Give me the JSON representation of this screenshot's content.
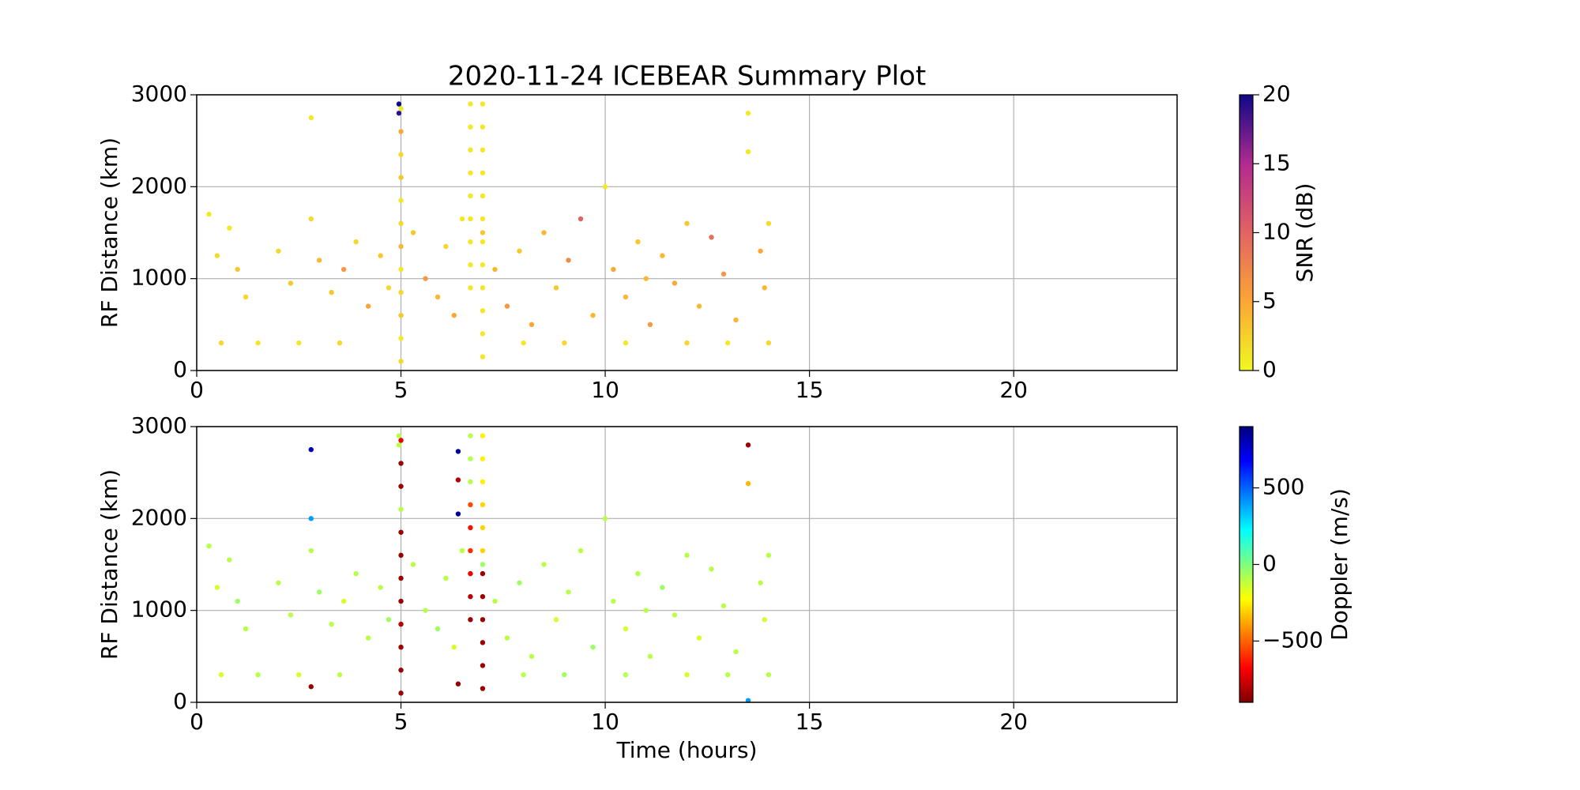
{
  "chart_data": [
    {
      "type": "scatter",
      "title": "2020-11-24 ICEBEAR Summary Plot",
      "ylabel": "RF Distance (km)",
      "xlim": [
        0,
        24
      ],
      "ylim": [
        0,
        3000
      ],
      "xticks": [
        0,
        5,
        10,
        15,
        20
      ],
      "yticks": [
        0,
        1000,
        2000,
        3000
      ],
      "grid": true,
      "x": [
        0.3,
        0.5,
        0.8,
        1.0,
        1.2,
        1.5,
        0.6,
        2.0,
        2.3,
        2.8,
        2.8,
        3.0,
        3.3,
        3.6,
        3.9,
        4.2,
        4.5,
        4.7,
        3.5,
        2.5,
        5.3,
        5.6,
        5.9,
        6.1,
        6.3,
        6.5,
        7.3,
        7.6,
        7.9,
        8.2,
        8.5,
        8.8,
        9.1,
        9.4,
        9.7,
        10.0,
        10.2,
        10.5,
        10.8,
        11.1,
        11.4,
        11.7,
        12.0,
        12.3,
        12.6,
        12.9,
        13.2,
        13.5,
        13.5,
        13.8,
        13.9,
        14.0,
        8.0,
        9.0,
        10.5,
        12.0,
        13.0,
        14.0,
        11.0,
        7.0,
        4.95,
        4.95,
        5.0,
        5.0,
        5.0,
        5.0,
        5.0,
        5.0,
        5.0,
        5.0,
        5.0,
        5.0,
        5.0,
        5.0,
        6.7,
        6.7,
        6.7,
        6.7,
        6.7,
        6.7,
        6.7,
        6.7,
        6.7,
        7.0,
        7.0,
        7.0,
        7.0,
        7.0,
        7.0,
        7.0,
        7.0,
        7.0,
        7.0,
        7.0,
        7.0
      ],
      "y": [
        1700,
        1250,
        1550,
        1100,
        800,
        300,
        300,
        1300,
        950,
        2750,
        1650,
        1200,
        850,
        1100,
        1400,
        700,
        1250,
        900,
        300,
        300,
        1500,
        1000,
        800,
        1350,
        600,
        1650,
        1100,
        700,
        1300,
        500,
        1500,
        900,
        1200,
        1650,
        600,
        2000,
        1100,
        800,
        1400,
        500,
        1250,
        950,
        1600,
        700,
        1450,
        1050,
        550,
        2800,
        2380,
        1300,
        900,
        1600,
        300,
        300,
        300,
        300,
        300,
        300,
        1000,
        1500,
        2800,
        2900,
        100,
        350,
        600,
        850,
        1100,
        1350,
        1600,
        1850,
        2100,
        2350,
        2600,
        2850,
        900,
        1150,
        1400,
        1650,
        1900,
        2150,
        2400,
        2650,
        2900,
        150,
        400,
        650,
        900,
        1150,
        1400,
        1650,
        1900,
        2150,
        2400,
        2650,
        2900
      ],
      "c": [
        1,
        2,
        1,
        3,
        2,
        1,
        2,
        2,
        3,
        1,
        2,
        4,
        3,
        6,
        2,
        5,
        3,
        2,
        2,
        1,
        3,
        6,
        4,
        2,
        5,
        1,
        4,
        6,
        3,
        5,
        4,
        3,
        7,
        10,
        4,
        1,
        5,
        4,
        3,
        6,
        4,
        5,
        3,
        4,
        9,
        6,
        4,
        1,
        1,
        5,
        4,
        2,
        1,
        2,
        1,
        2,
        1,
        2,
        4,
        3,
        19,
        20,
        2,
        1,
        3,
        2,
        1,
        4,
        2,
        1,
        3,
        2,
        5,
        1,
        1,
        1,
        1,
        1,
        1,
        1,
        1,
        1,
        1,
        1,
        1,
        1,
        1,
        1,
        1,
        1,
        1,
        1,
        1,
        1,
        1
      ],
      "colorbar": {
        "label": "SNR (dB)",
        "lim": [
          0,
          20
        ],
        "ticks": [
          0,
          5,
          10,
          15,
          20
        ],
        "colormap": [
          [
            0,
            "#f0f921"
          ],
          [
            0.25,
            "#fca636"
          ],
          [
            0.5,
            "#e16462"
          ],
          [
            0.75,
            "#b12a90"
          ],
          [
            1,
            "#0d0887"
          ]
        ]
      }
    },
    {
      "type": "scatter",
      "xlabel": "Time (hours)",
      "ylabel": "RF Distance (km)",
      "xlim": [
        0,
        24
      ],
      "ylim": [
        0,
        3000
      ],
      "xticks": [
        0,
        5,
        10,
        15,
        20
      ],
      "yticks": [
        0,
        1000,
        2000,
        3000
      ],
      "grid": true,
      "x": [
        0.3,
        0.5,
        0.8,
        1.0,
        1.2,
        1.5,
        0.6,
        2.0,
        2.3,
        2.8,
        2.8,
        3.0,
        3.3,
        3.6,
        3.9,
        4.2,
        4.5,
        4.7,
        3.5,
        2.5,
        5.3,
        5.6,
        5.9,
        6.1,
        6.3,
        6.5,
        7.3,
        7.6,
        7.9,
        8.2,
        8.5,
        8.8,
        9.1,
        9.4,
        9.7,
        10.0,
        10.2,
        10.5,
        10.8,
        11.1,
        11.4,
        11.7,
        12.0,
        12.3,
        12.6,
        12.9,
        13.2,
        13.5,
        13.5,
        13.8,
        13.9,
        14.0,
        8.0,
        9.0,
        10.5,
        12.0,
        13.0,
        14.0,
        11.0,
        7.0,
        2.8,
        2.8,
        6.4,
        6.4,
        6.4,
        6.4,
        13.5,
        4.95,
        4.95,
        5.0,
        5.0,
        5.0,
        5.0,
        5.0,
        5.0,
        5.0,
        5.0,
        5.0,
        5.0,
        5.0,
        5.0,
        6.7,
        6.7,
        6.7,
        6.7,
        6.7,
        6.7,
        6.7,
        6.7,
        6.7,
        7.0,
        7.0,
        7.0,
        7.0,
        7.0,
        7.0,
        7.0,
        7.0,
        7.0,
        7.0,
        7.0,
        7.0
      ],
      "y": [
        1700,
        1250,
        1550,
        1100,
        800,
        300,
        300,
        1300,
        950,
        2750,
        1650,
        1200,
        850,
        1100,
        1400,
        700,
        1250,
        900,
        300,
        300,
        1500,
        1000,
        800,
        1350,
        600,
        1650,
        1100,
        700,
        1300,
        500,
        1500,
        900,
        1200,
        1650,
        600,
        2000,
        1100,
        800,
        1400,
        500,
        1250,
        950,
        1600,
        700,
        1450,
        1050,
        550,
        2800,
        2380,
        1300,
        900,
        1600,
        300,
        300,
        300,
        300,
        300,
        300,
        1000,
        1500,
        2000,
        170,
        2730,
        2420,
        2050,
        200,
        20,
        2800,
        2900,
        100,
        350,
        600,
        850,
        1100,
        1350,
        1600,
        1850,
        2100,
        2350,
        2600,
        2850,
        900,
        1150,
        1400,
        1650,
        1900,
        2150,
        2400,
        2650,
        2900,
        150,
        400,
        650,
        900,
        1150,
        1400,
        1650,
        1900,
        2150,
        2400,
        2650,
        2900
      ],
      "c": [
        -100,
        -150,
        -100,
        -50,
        -100,
        -100,
        -150,
        -100,
        -100,
        800,
        -100,
        -50,
        -100,
        -150,
        -100,
        -100,
        -100,
        -50,
        -100,
        -150,
        -100,
        -100,
        -50,
        -100,
        -150,
        -100,
        -100,
        -100,
        -50,
        -100,
        -100,
        -150,
        -100,
        -100,
        -50,
        -100,
        -100,
        -150,
        -100,
        -100,
        -50,
        -100,
        -100,
        -150,
        -100,
        -100,
        -100,
        -850,
        -350,
        -100,
        -150,
        -100,
        -100,
        -50,
        -100,
        -150,
        -100,
        -100,
        -100,
        -50,
        400,
        -850,
        850,
        -800,
        850,
        -850,
        400,
        -100,
        -100,
        -850,
        -850,
        -850,
        -800,
        -850,
        -850,
        -850,
        -850,
        -100,
        -850,
        -850,
        -700,
        -850,
        -800,
        -700,
        -600,
        -650,
        -550,
        -100,
        -100,
        -100,
        -850,
        -850,
        -850,
        -850,
        -850,
        -850,
        -300,
        -300,
        -300,
        -250,
        -250,
        -250
      ],
      "colorbar": {
        "label": "Doppler (m/s)",
        "lim": [
          -900,
          900
        ],
        "ticks": [
          {
            "value": -500,
            "label": "−500"
          },
          0,
          500
        ],
        "colormap": [
          [
            0,
            "#7f0000"
          ],
          [
            0.125,
            "#ff0000"
          ],
          [
            0.375,
            "#ffff00"
          ],
          [
            0.625,
            "#00ffff"
          ],
          [
            0.875,
            "#0000ff"
          ],
          [
            1,
            "#00007f"
          ]
        ]
      }
    }
  ]
}
